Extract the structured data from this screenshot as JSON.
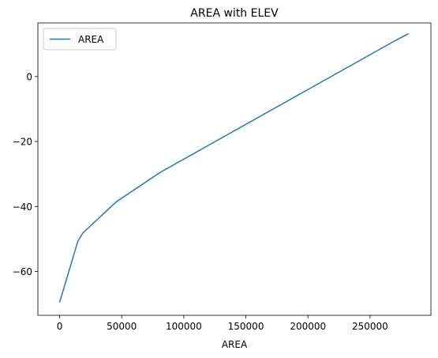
{
  "chart_data": {
    "type": "line",
    "title": "AREA with ELEV",
    "xlabel": "AREA",
    "ylabel": "",
    "xlim": [
      -17500,
      299000
    ],
    "ylim": [
      -73.5,
      16.5
    ],
    "xticks": [
      0,
      50000,
      100000,
      150000,
      200000,
      250000
    ],
    "xtick_labels": [
      "0",
      "50000",
      "100000",
      "150000",
      "200000",
      "250000"
    ],
    "yticks": [
      -60,
      -40,
      -20,
      0
    ],
    "ytick_labels": [
      "−60",
      "−40",
      "−20",
      "0"
    ],
    "grid": false,
    "legend_position": "upper-left",
    "series": [
      {
        "name": "AREA",
        "color": "#1f77b4",
        "x": [
          0,
          14600,
          18600,
          45500,
          81000,
          270000,
          281000
        ],
        "y": [
          -69.5,
          -50.8,
          -48.2,
          -38.6,
          -29.5,
          11.0,
          13.2
        ]
      }
    ]
  }
}
